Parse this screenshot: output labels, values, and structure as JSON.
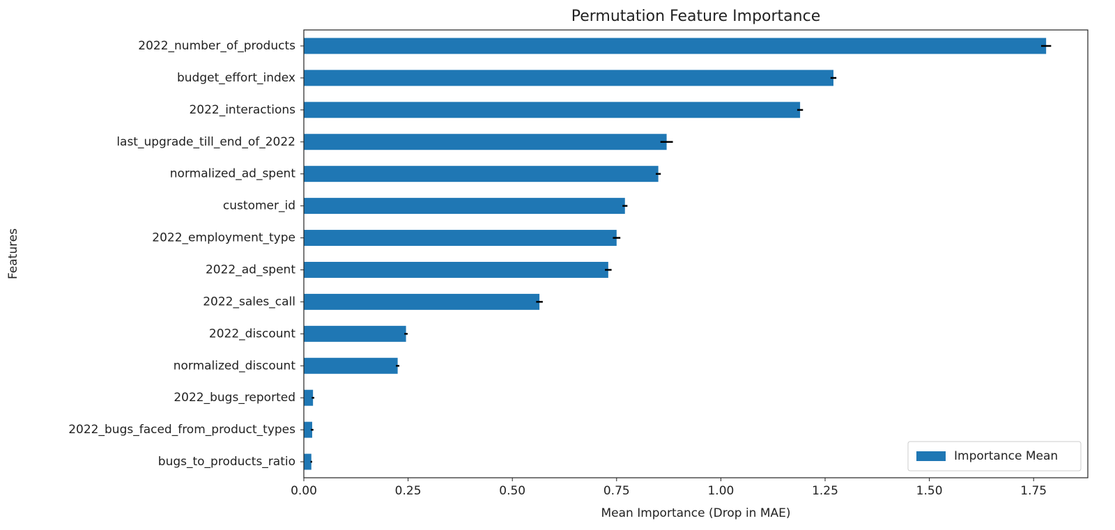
{
  "chart_data": {
    "type": "bar",
    "orientation": "horizontal",
    "title": "Permutation Feature Importance",
    "xlabel": "Mean Importance (Drop in MAE)",
    "ylabel": "Features",
    "xlim": [
      0,
      1.88
    ],
    "xticks": [
      "0.00",
      "0.25",
      "0.50",
      "0.75",
      "1.00",
      "1.25",
      "1.50",
      "1.75"
    ],
    "categories": [
      "2022_number_of_products",
      "budget_effort_index",
      "2022_interactions",
      "last_upgrade_till_end_of_2022",
      "normalized_ad_spent",
      "customer_id",
      "2022_employment_type",
      "2022_ad_spent",
      "2022_sales_call",
      "2022_discount",
      "normalized_discount",
      "2022_bugs_reported",
      "2022_bugs_faced_from_product_types",
      "bugs_to_products_ratio"
    ],
    "series": [
      {
        "name": "Importance Mean",
        "color": "#1f77b4",
        "values": [
          1.78,
          1.27,
          1.19,
          0.87,
          0.85,
          0.77,
          0.75,
          0.73,
          0.565,
          0.245,
          0.225,
          0.022,
          0.02,
          0.018
        ],
        "errors": [
          0.012,
          0.007,
          0.007,
          0.015,
          0.006,
          0.006,
          0.009,
          0.008,
          0.008,
          0.004,
          0.004,
          0.003,
          0.003,
          0.002
        ]
      }
    ],
    "legend": {
      "position": "lower-right",
      "labels": [
        "Importance Mean"
      ]
    },
    "grid": false
  }
}
